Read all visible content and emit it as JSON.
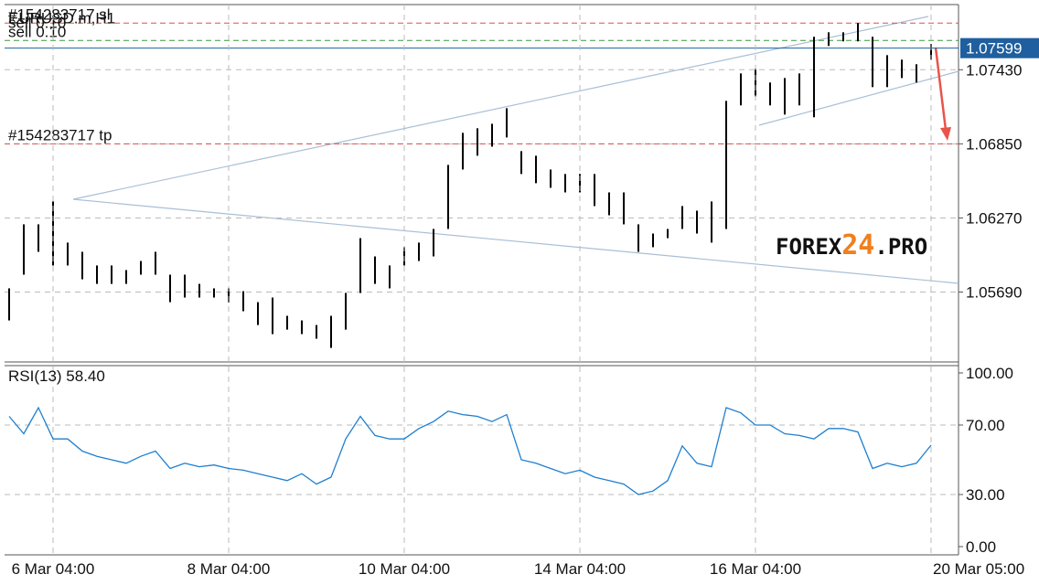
{
  "chart_data": [
    {
      "type": "ohlc",
      "symbol": "EURUSD.m,H1",
      "color": "#000000",
      "high": [
        1.05719,
        1.0622,
        1.0622,
        1.06399,
        1.06077,
        1.06005,
        1.05898,
        1.05898,
        1.05862,
        1.05933,
        1.06005,
        1.05826,
        1.05826,
        1.05754,
        1.05719,
        1.05719,
        1.05697,
        1.05611,
        1.05647,
        1.05504,
        1.05468,
        1.05432,
        1.05504,
        1.05683,
        1.06112,
        1.05969,
        1.05898,
        1.06041,
        1.06077,
        1.06184,
        1.06685,
        1.06936,
        1.06972,
        1.07007,
        1.07129,
        1.06793,
        1.06757,
        1.06649,
        1.06614,
        1.06614,
        1.06614,
        1.0647,
        1.0647,
        1.0622,
        1.06148,
        1.06184,
        1.06363,
        1.06327,
        1.06399,
        1.07186,
        1.07401,
        1.07437,
        1.0733,
        1.07365,
        1.07401,
        1.07688,
        1.07723,
        1.07723,
        1.07795,
        1.07688,
        1.07544,
        1.07509,
        1.07473,
        1.0763
      ],
      "low": [
        1.05468,
        1.05826,
        1.06005,
        1.05898,
        1.05898,
        1.0579,
        1.05754,
        1.05754,
        1.05754,
        1.05826,
        1.05826,
        1.05611,
        1.05647,
        1.05647,
        1.05647,
        1.05611,
        1.0554,
        1.05432,
        1.05361,
        1.05396,
        1.05361,
        1.05325,
        1.05253,
        1.05396,
        1.05683,
        1.05754,
        1.05719,
        1.05898,
        1.05933,
        1.05969,
        1.06184,
        1.06649,
        1.06757,
        1.06828,
        1.069,
        1.06614,
        1.06542,
        1.06506,
        1.0647,
        1.0647,
        1.06363,
        1.06291,
        1.0622,
        1.06005,
        1.06041,
        1.06112,
        1.06184,
        1.06148,
        1.06077,
        1.06184,
        1.07151,
        1.07222,
        1.07151,
        1.07079,
        1.07151,
        1.07058,
        1.07616,
        1.07652,
        1.07652,
        1.07294,
        1.07294,
        1.07365,
        1.0733,
        1.07509
      ],
      "ylim": [
        1.0515,
        1.0794
      ],
      "yticks": [
        {
          "value": 1.0569,
          "label": "1.05690"
        },
        {
          "value": 1.0627,
          "label": "1.06270"
        },
        {
          "value": 1.0685,
          "label": "1.06850"
        },
        {
          "value": 1.0743,
          "label": "1.07430"
        }
      ],
      "current_price": 1.07599,
      "current_color": "#1f5f9f",
      "levels": [
        {
          "label": "#154283717 sl",
          "value": 1.07795,
          "color": "#d9534f"
        },
        {
          "label": "sell 0.10",
          "value": 1.07659,
          "color": "#3a9a3a"
        },
        {
          "label": "#154283717 tp",
          "value": 1.0685,
          "color": "#d9534f"
        }
      ],
      "order_note": "sell 0.10",
      "grid": true,
      "watermark": [
        "FOREX",
        "24",
        ".PRO"
      ]
    },
    {
      "type": "line",
      "title": "RSI(13) 58.40",
      "categories": [
        null,
        null,
        null,
        "6 Mar 04:00",
        null,
        null,
        null,
        null,
        null,
        null,
        null,
        null,
        null,
        null,
        null,
        "8 Mar 04:00",
        null,
        null,
        null,
        null,
        null,
        null,
        null,
        null,
        null,
        null,
        null,
        "10 Mar 04:00",
        null,
        null,
        null,
        null,
        null,
        null,
        null,
        null,
        null,
        null,
        null,
        "14 Mar 04:00",
        null,
        null,
        null,
        null,
        null,
        null,
        null,
        null,
        null,
        null,
        null,
        "16 Mar 04:00",
        null,
        null,
        null,
        null,
        null,
        null,
        null,
        null,
        null,
        null,
        null,
        "20 Mar 05:00"
      ],
      "series": [
        {
          "name": "RSI(13)",
          "color": "#1e7fd0",
          "values": [
            75,
            65,
            80,
            62,
            62,
            55,
            52,
            50,
            48,
            52,
            55,
            45,
            48,
            46,
            47,
            45,
            44,
            42,
            40,
            38,
            42,
            36,
            40,
            62,
            75,
            64,
            62,
            62,
            68,
            72,
            78,
            76,
            75,
            72,
            76,
            50,
            48,
            45,
            42,
            44,
            40,
            38,
            36,
            30,
            32,
            38,
            58,
            48,
            46,
            80,
            77,
            70,
            70,
            65,
            64,
            62,
            68,
            68,
            66,
            45,
            48,
            46,
            48,
            58.4
          ]
        }
      ],
      "ylim": [
        0,
        100
      ],
      "yticks": [
        {
          "value": 0,
          "label": "0.00"
        },
        {
          "value": 30,
          "label": "30.00"
        },
        {
          "value": 70,
          "label": "70.00"
        },
        {
          "value": 100,
          "label": "100.00"
        }
      ],
      "grid": true
    }
  ]
}
